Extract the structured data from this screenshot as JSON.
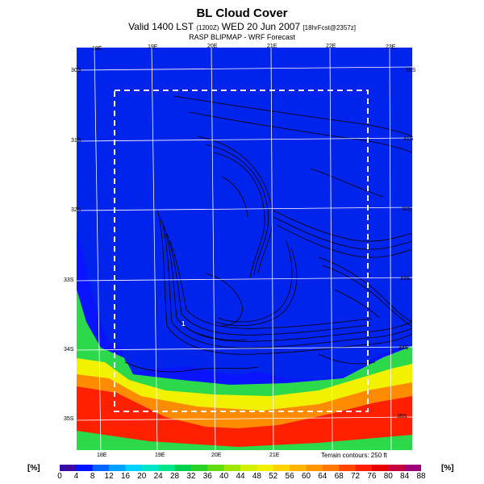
{
  "header": {
    "title": "BL Cloud Cover",
    "valid_prefix": "Valid 1400 LST",
    "valid_code": "(1200Z)",
    "valid_date": "WED 20 Jun 2007",
    "forecast_code": "[18hrFcst@2357z]",
    "subtitle": "RASP BLIPMAP - WRF Forecast"
  },
  "map": {
    "top_longitudes": [
      "18E",
      "19E",
      "20E",
      "21E",
      "22E",
      "23E"
    ],
    "bottom_longitudes": [
      "18E",
      "19E",
      "20E",
      "21E"
    ],
    "left_latitudes": [
      "30S",
      "31S",
      "32S",
      "33S",
      "34S",
      "35S"
    ],
    "right_latitudes": [
      "30S",
      "31S",
      "32S",
      "33S",
      "34S",
      "35S"
    ],
    "marker_label": "1",
    "terrain_note": "Terrain contours: 250 ft",
    "colors": {
      "ocean_blue": "#0a14ff",
      "land_blue": "#0022ee",
      "green": "#2bd94b",
      "yellow": "#f2f200",
      "orange": "#ff8c00",
      "red": "#ff2000"
    }
  },
  "colorbar": {
    "unit_label": "[%]",
    "ticks": [
      "0",
      "4",
      "8",
      "12",
      "16",
      "20",
      "24",
      "28",
      "32",
      "36",
      "40",
      "44",
      "48",
      "52",
      "56",
      "60",
      "64",
      "68",
      "72",
      "76",
      "80",
      "84",
      "88"
    ],
    "colors": [
      "#3a0aa5",
      "#0014ff",
      "#0064ff",
      "#00a0ff",
      "#00d2ff",
      "#00e6c8",
      "#00e68c",
      "#00d250",
      "#28d228",
      "#64dc14",
      "#a0e600",
      "#d2f000",
      "#f0f000",
      "#ffd200",
      "#ffb400",
      "#ff9600",
      "#ff7800",
      "#ff4600",
      "#ff1e00",
      "#e60000",
      "#c8003c",
      "#a00078"
    ]
  }
}
